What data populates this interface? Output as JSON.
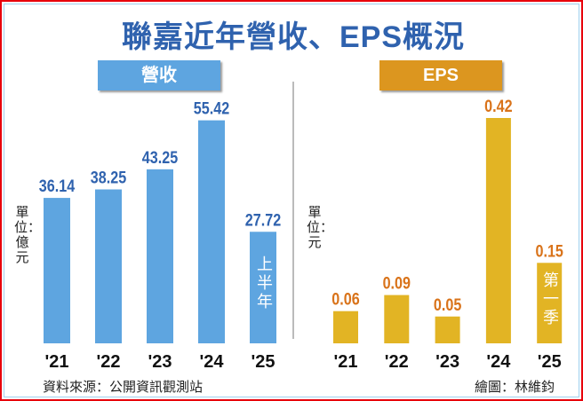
{
  "title": "聯嘉近年營收、EPS概況",
  "source": "資料來源：公開資訊觀測站",
  "credit": "繪圖：林維鈞",
  "chart_data": [
    {
      "type": "bar",
      "title": "營收",
      "unit": "單位：億元",
      "categories": [
        "'21",
        "'22",
        "'23",
        "'24",
        "'25"
      ],
      "values": [
        36.14,
        38.25,
        43.25,
        55.42,
        27.72
      ],
      "value_labels": [
        "36.14",
        "38.25",
        "43.25",
        "55.42",
        "27.72"
      ],
      "annotations": {
        "'25": "上半年"
      },
      "ylim": [
        0,
        56
      ],
      "color": "#5ea5e0",
      "label_color": "#2f62ae"
    },
    {
      "type": "bar",
      "title": "EPS",
      "unit": "單位：元",
      "categories": [
        "'21",
        "'22",
        "'23",
        "'24",
        "'25"
      ],
      "values": [
        0.06,
        0.09,
        0.05,
        0.42,
        0.15
      ],
      "value_labels": [
        "0.06",
        "0.09",
        "0.05",
        "0.42",
        "0.15"
      ],
      "annotations": {
        "'25": "第一季"
      },
      "ylim": [
        0,
        0.42
      ],
      "color": "#e2b424",
      "label_color": "#d9731a"
    }
  ]
}
